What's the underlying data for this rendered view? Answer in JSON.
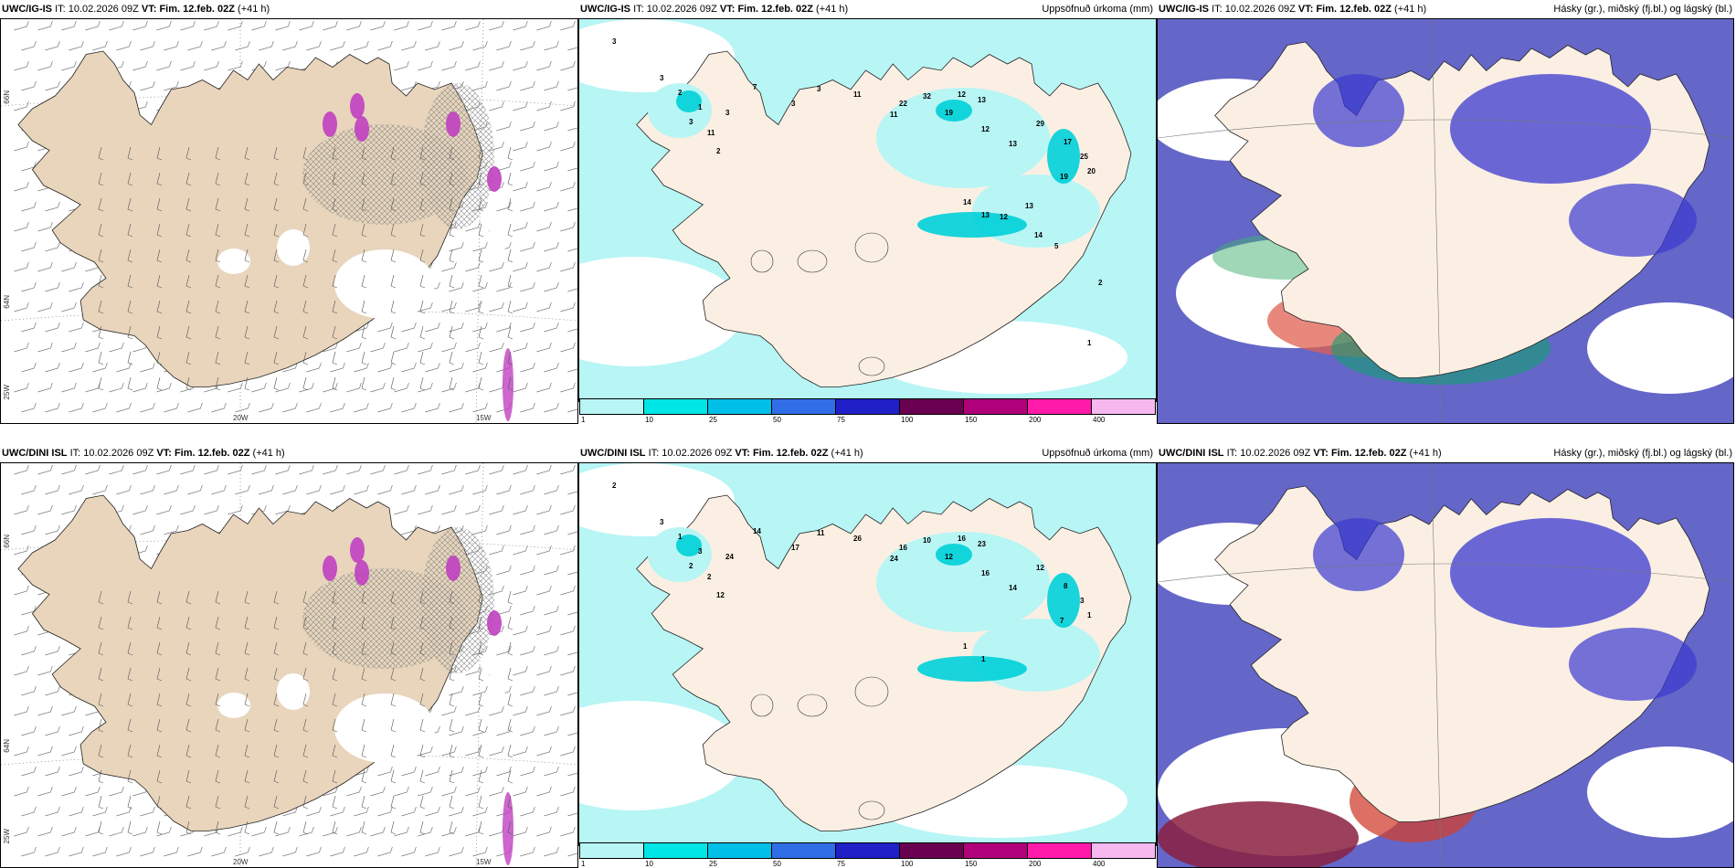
{
  "rows": [
    {
      "model": "UWC/IG-IS",
      "it_label": "IT:",
      "it_value": "10.02.2026 09Z",
      "vt_label": "VT:",
      "vt_value": "Fim. 12.feb. 02Z",
      "lead": "(+41 h)",
      "precip_title": "Uppsöfnuð úrkoma (mm)",
      "cloud_title": "Hásky (gr.), miðský (fj.bl.) og lágský (bl.)",
      "lat_labels": [
        "66N",
        "64N",
        "25W"
      ],
      "lon_labels": [
        "20W",
        "15W"
      ],
      "precip_values": [
        "3",
        "3",
        "2",
        "3",
        "1",
        "2",
        "11",
        "3",
        "7",
        "3",
        "3",
        "11",
        "11",
        "22",
        "32",
        "19",
        "12",
        "13",
        "12",
        "13",
        "29",
        "17",
        "25",
        "19",
        "20",
        "14",
        "13",
        "12",
        "13",
        "14",
        "5",
        "2",
        "1"
      ]
    },
    {
      "model": "UWC/DINI ISL",
      "it_label": "IT:",
      "it_value": "10.02.2026 09Z",
      "vt_label": "VT:",
      "vt_value": "Fim. 12.feb. 02Z",
      "lead": "(+41 h)",
      "precip_title": "Uppsöfnuð úrkoma (mm)",
      "cloud_title": "Hásky (gr.), miðský (fj.bl.) og lágský (bl.)",
      "lat_labels": [
        "66N",
        "64N",
        "25W"
      ],
      "lon_labels": [
        "20W",
        "15W"
      ],
      "precip_values": [
        "2",
        "3",
        "1",
        "2",
        "3",
        "12",
        "2",
        "24",
        "14",
        "17",
        "11",
        "26",
        "24",
        "16",
        "10",
        "12",
        "16",
        "23",
        "16",
        "14",
        "12",
        "8",
        "3",
        "7",
        "1",
        "1",
        "1"
      ]
    }
  ],
  "colorbar": {
    "labels": [
      "1",
      "10",
      "25",
      "50",
      "75",
      "100",
      "150",
      "200",
      "400"
    ],
    "colors": [
      "#b8f5f5",
      "#00e5e5",
      "#00bfe8",
      "#2f6ee6",
      "#2020c8",
      "#6a0050",
      "#b0007a",
      "#ff1aaa",
      "#f7b8f0"
    ]
  },
  "colors": {
    "land": "#e8d5bc",
    "precip_land": "#fbefe3",
    "sea_precip": "#b8f5f5",
    "cloud_sea": "#6466c8",
    "cloud_mid": "#3a3ad0",
    "icecap_hatch": "#8a8a8a"
  }
}
